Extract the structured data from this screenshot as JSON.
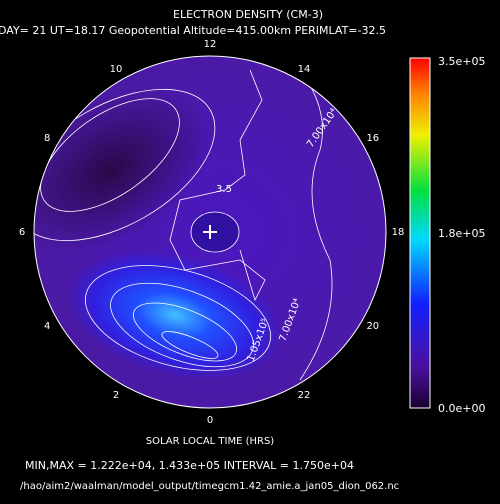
{
  "title": "ELECTRON DENSITY (CM-3)",
  "subtitle": "DAY= 21 UT=18.17 Geopotential Altitude=415.00km PERIMLAT=-32.5",
  "local_time_labels": [
    "12",
    "14",
    "16",
    "18",
    "20",
    "22",
    "0",
    "2",
    "4",
    "6",
    "8",
    "10"
  ],
  "colorbar_labels": [
    "3.5e+05",
    "1.8e+05",
    "0.0e+00"
  ],
  "contour_labels": [
    "1.05x10⁵",
    "7.00x10⁴",
    "7.00x10⁴",
    "3.5"
  ],
  "x_label": "SOLAR LOCAL TIME (HRS)",
  "stats": "MIN,MAX =  1.222e+04, 1.433e+05 INTERVAL =  1.750e+04",
  "file_path": "/hao/aim2/waalman/model_output/timegcm1.42_amie.a_jan05_dion_062.nc"
}
